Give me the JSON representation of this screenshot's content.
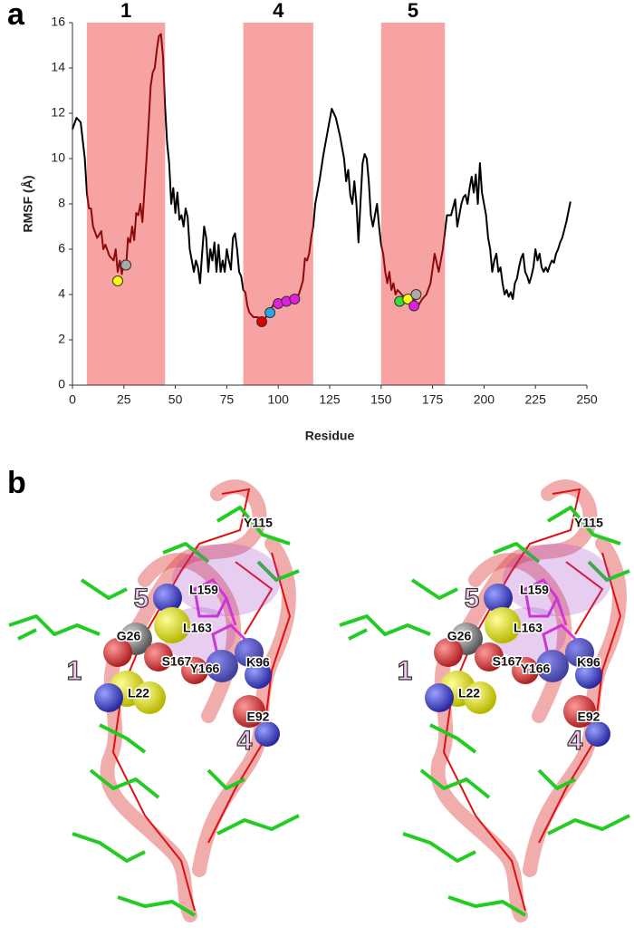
{
  "chart_data": {
    "type": "line",
    "panel_label": "a",
    "x_label": "Residue",
    "y_label": "RMSF (Å)",
    "xlim": [
      0,
      250
    ],
    "xticks": [
      0,
      25,
      50,
      75,
      100,
      125,
      150,
      175,
      200,
      225,
      250
    ],
    "ylim": [
      0,
      16
    ],
    "yticks": [
      0,
      2,
      4,
      6,
      8,
      10,
      12,
      14,
      16
    ],
    "region_color": "#f7a3a3",
    "region_line_color": "#8b0a0a",
    "regions": [
      {
        "label": "1",
        "start": 7,
        "end": 45
      },
      {
        "label": "4",
        "start": 83,
        "end": 117
      },
      {
        "label": "5",
        "start": 150,
        "end": 181
      }
    ],
    "series": [
      {
        "color": "#000000",
        "x": [
          0,
          2,
          4,
          6,
          7,
          8,
          9,
          10,
          12,
          14,
          15,
          16,
          18,
          20,
          21,
          22,
          23,
          24,
          25,
          26,
          27,
          28,
          29,
          30,
          31,
          32,
          33,
          34,
          35,
          36,
          37,
          38,
          39,
          40,
          41,
          42,
          43,
          44,
          45,
          46,
          47,
          48,
          49,
          50,
          51,
          52,
          53,
          54,
          55,
          56,
          57,
          58,
          59,
          60,
          61,
          62,
          63,
          64,
          65,
          66,
          67,
          68,
          69,
          70,
          71,
          72,
          73,
          74,
          75,
          76,
          77,
          78,
          79,
          80,
          81,
          82,
          83,
          84,
          85,
          86,
          88,
          90,
          92,
          94,
          96,
          98,
          100,
          102,
          104,
          106,
          108,
          110,
          111,
          112,
          113,
          114,
          115,
          116,
          117,
          118,
          120,
          122,
          124,
          126,
          128,
          130,
          132,
          133,
          134,
          135,
          136,
          137,
          138,
          139,
          140,
          141,
          142,
          143,
          144,
          145,
          146,
          147,
          148,
          149,
          150,
          151,
          152,
          153,
          154,
          155,
          156,
          157,
          158,
          160,
          162,
          164,
          166,
          168,
          170,
          172,
          174,
          176,
          178,
          180,
          182,
          184,
          186,
          187,
          188,
          189,
          190,
          191,
          192,
          193,
          194,
          195,
          196,
          197,
          198,
          199,
          200,
          201,
          202,
          203,
          204,
          205,
          206,
          207,
          208,
          209,
          210,
          211,
          212,
          213,
          214,
          215,
          216,
          217,
          218,
          219,
          220,
          221,
          222,
          223,
          224,
          225,
          226,
          227,
          228,
          229,
          230,
          231,
          232,
          233,
          234,
          235,
          236,
          237,
          238,
          240,
          242
        ],
        "values": [
          11.3,
          11.8,
          11.6,
          10,
          8.5,
          7.8,
          7.8,
          7.0,
          6.5,
          6.8,
          6.0,
          6.2,
          5.7,
          5.5,
          6.0,
          5.0,
          5.5,
          4.9,
          5.5,
          5.1,
          6.5,
          6.3,
          7.0,
          6.4,
          7.6,
          7.5,
          8.0,
          7.2,
          8.6,
          10,
          11.5,
          13.2,
          13.8,
          14.0,
          14.8,
          15.4,
          15.5,
          14.5,
          12.3,
          10.7,
          9.8,
          8.0,
          8.7,
          7.6,
          8.5,
          7.3,
          7.5,
          7.0,
          7.8,
          7.4,
          6.0,
          5.5,
          5.0,
          5.5,
          5.2,
          4.5,
          5.8,
          7.0,
          6.5,
          5.0,
          6.0,
          5.5,
          6.3,
          5.0,
          6.2,
          5.0,
          5.5,
          5.0,
          6.0,
          5.5,
          5.1,
          6.5,
          6.7,
          6.0,
          5.0,
          4.8,
          4.2,
          4.1,
          3.5,
          3.2,
          3.0,
          3.0,
          2.8,
          3.0,
          3.3,
          3.6,
          3.5,
          3.7,
          3.6,
          3.8,
          3.9,
          4.0,
          4.3,
          4.6,
          5.6,
          5.5,
          5.8,
          6.5,
          7.0,
          8.0,
          9.0,
          10.2,
          11.2,
          12.2,
          11.8,
          11.0,
          10.0,
          9.0,
          9.5,
          8.4,
          8.0,
          9.0,
          8.0,
          6.3,
          8.1,
          9.8,
          10.2,
          10.0,
          9.0,
          7.5,
          7.0,
          7.5,
          8.0,
          7.0,
          6.2,
          5.8,
          5.0,
          4.5,
          5.0,
          4.2,
          4.5,
          4.0,
          4.2,
          4.0,
          3.8,
          3.7,
          3.8,
          3.5,
          3.8,
          4.0,
          4.5,
          5.8,
          5.0,
          6.0,
          7.5,
          7.5,
          8.2,
          7.0,
          7.5,
          8.0,
          8.3,
          8.4,
          8.0,
          8.7,
          9.2,
          8.5,
          9.3,
          8.0,
          9.8,
          8.5,
          8.0,
          7.5,
          6.5,
          6.0,
          5.0,
          5.5,
          5.8,
          5.0,
          5.2,
          4.5,
          4.0,
          4.2,
          3.9,
          4.1,
          3.8,
          4.5,
          4.7,
          5.2,
          5.6,
          5.8,
          5.0,
          4.8,
          4.5,
          4.8,
          5.2,
          6.0,
          5.5,
          5.8,
          5.2,
          5.0,
          5.2,
          5.0,
          5.3,
          5.5,
          5.4,
          5.8,
          6.0,
          6.3,
          6.5,
          7.2,
          8.1
        ]
      }
    ],
    "markers": {
      "x": [
        22,
        26,
        92,
        96,
        100,
        104,
        108,
        159,
        163,
        166,
        167
      ],
      "values": [
        4.6,
        5.3,
        2.8,
        3.2,
        3.6,
        3.7,
        3.8,
        3.7,
        3.8,
        3.5,
        4.0
      ],
      "colors": [
        "#ffff00",
        "#aaaaaa",
        "#e00000",
        "#2aa6e6",
        "#e020e0",
        "#e020e0",
        "#e020e0",
        "#33dd33",
        "#ffff00",
        "#e020e0",
        "#aaaaaa"
      ]
    }
  },
  "structure": {
    "panel_label": "b",
    "views": [
      {
        "labels": [
          "Y115",
          "L159",
          "L163",
          "G26",
          "S167",
          "Y166",
          "K96",
          "L22",
          "E92"
        ],
        "helices": [
          "5",
          "1",
          "4"
        ]
      },
      {
        "labels": [
          "Y115",
          "L159",
          "L163",
          "G26",
          "S167",
          "Y166",
          "K96",
          "L22",
          "E92"
        ],
        "helices": [
          "5",
          "1",
          "4"
        ]
      }
    ]
  }
}
